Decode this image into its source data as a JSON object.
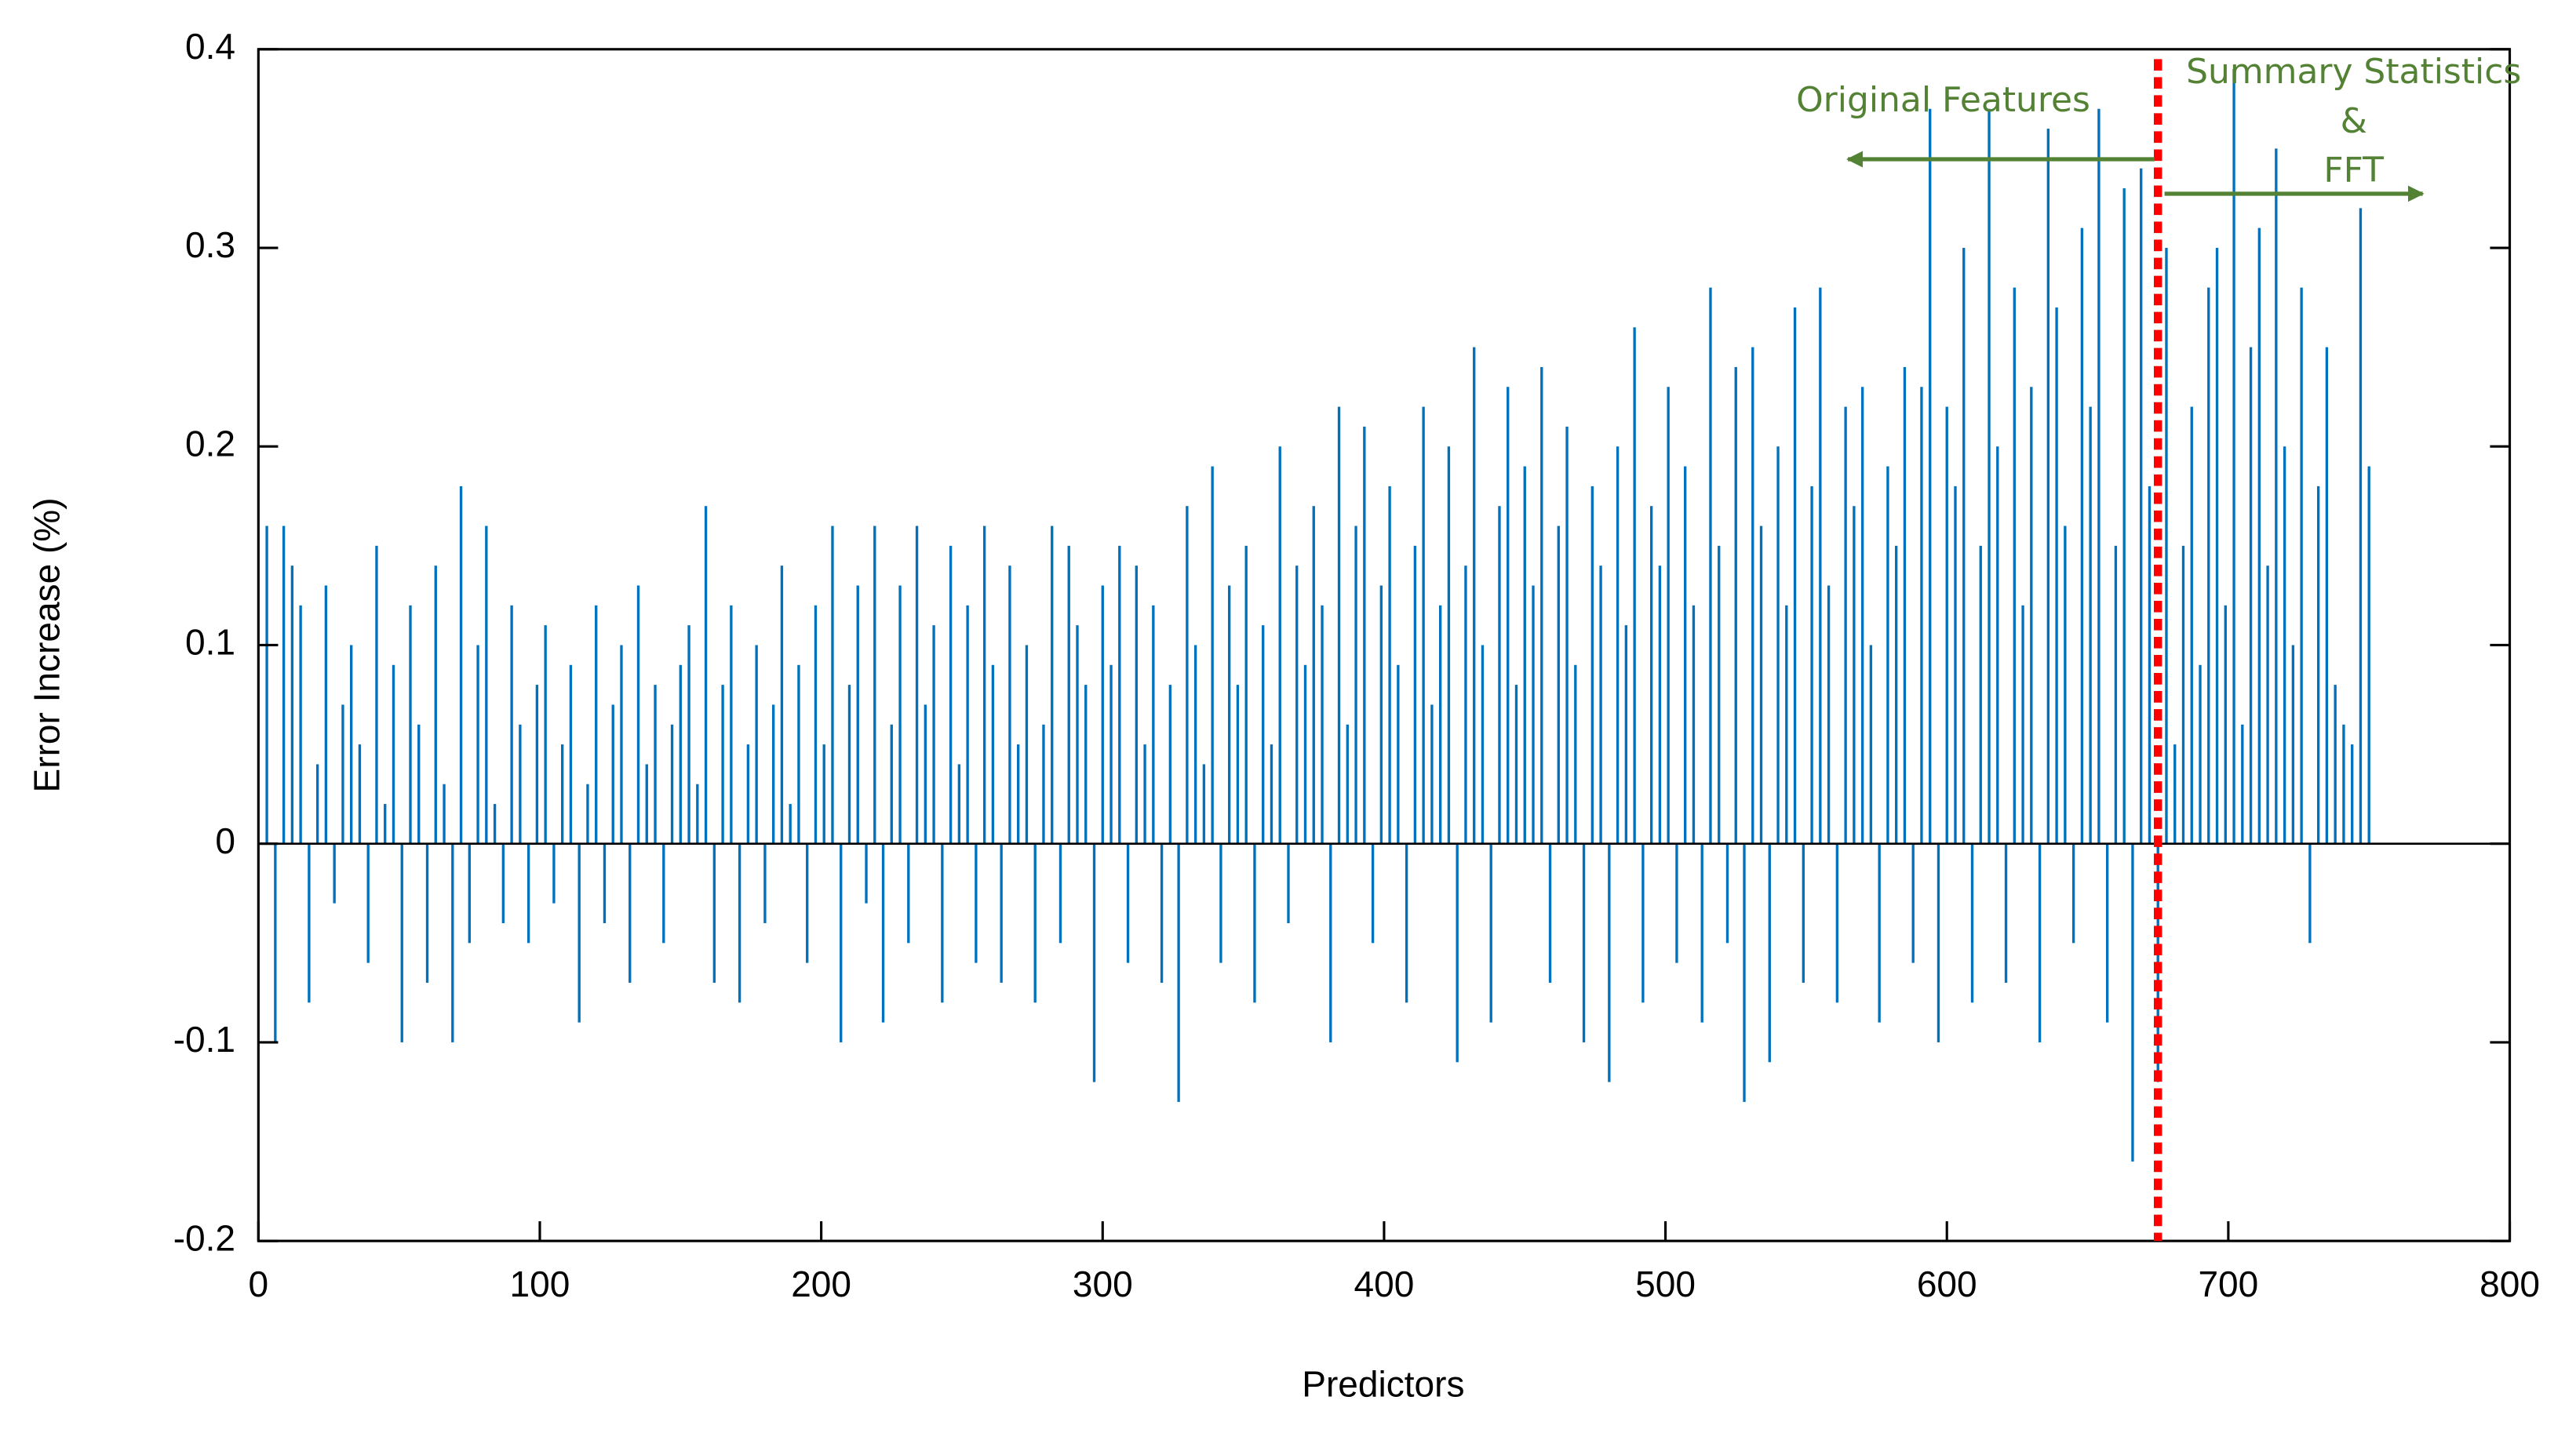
{
  "chart_data": {
    "type": "bar",
    "xlabel": "Predictors",
    "ylabel": "Error Increase (%)",
    "color": "#0072bd",
    "xlim": [
      0,
      800
    ],
    "xticks": [
      0,
      100,
      200,
      300,
      400,
      500,
      600,
      700,
      800
    ],
    "ylim": [
      -0.2,
      0.4
    ],
    "yticks": [
      -0.2,
      -0.1,
      0,
      0.1,
      0.2,
      0.3,
      0.4
    ],
    "divider_x": 675,
    "annotations": [
      "Original Features",
      "Summary Statistics",
      "&",
      "FFT"
    ],
    "x": [
      3,
      6,
      9,
      12,
      15,
      18,
      21,
      24,
      27,
      30,
      33,
      36,
      39,
      42,
      45,
      48,
      51,
      54,
      57,
      60,
      63,
      66,
      69,
      72,
      75,
      78,
      81,
      84,
      87,
      90,
      93,
      96,
      99,
      102,
      105,
      108,
      111,
      114,
      117,
      120,
      123,
      126,
      129,
      132,
      135,
      138,
      141,
      144,
      147,
      150,
      153,
      156,
      159,
      162,
      165,
      168,
      171,
      174,
      177,
      180,
      183,
      186,
      189,
      192,
      195,
      198,
      201,
      204,
      207,
      210,
      213,
      216,
      219,
      222,
      225,
      228,
      231,
      234,
      237,
      240,
      243,
      246,
      249,
      252,
      255,
      258,
      261,
      264,
      267,
      270,
      273,
      276,
      279,
      282,
      285,
      288,
      291,
      294,
      297,
      300,
      303,
      306,
      309,
      312,
      315,
      318,
      321,
      324,
      327,
      330,
      333,
      336,
      339,
      342,
      345,
      348,
      351,
      354,
      357,
      360,
      363,
      366,
      369,
      372,
      375,
      378,
      381,
      384,
      387,
      390,
      393,
      396,
      399,
      402,
      405,
      408,
      411,
      414,
      417,
      420,
      423,
      426,
      429,
      432,
      435,
      438,
      441,
      444,
      447,
      450,
      453,
      456,
      459,
      462,
      465,
      468,
      471,
      474,
      477,
      480,
      483,
      486,
      489,
      492,
      495,
      498,
      501,
      504,
      507,
      510,
      513,
      516,
      519,
      522,
      525,
      528,
      531,
      534,
      537,
      540,
      543,
      546,
      549,
      552,
      555,
      558,
      561,
      564,
      567,
      570,
      573,
      576,
      579,
      582,
      585,
      588,
      591,
      594,
      597,
      600,
      603,
      606,
      609,
      612,
      615,
      618,
      621,
      624,
      627,
      630,
      633,
      636,
      639,
      642,
      645,
      648,
      651,
      654,
      657,
      660,
      663,
      666,
      669,
      672,
      675,
      678,
      681,
      684,
      687,
      690,
      693,
      696,
      699,
      702,
      705,
      708,
      711,
      714,
      717,
      720,
      723,
      726,
      729,
      732,
      735,
      738,
      741,
      744,
      747,
      750
    ],
    "values": [
      0.16,
      -0.1,
      0.16,
      0.14,
      0.12,
      -0.08,
      0.04,
      0.13,
      -0.03,
      0.07,
      0.1,
      0.05,
      -0.06,
      0.15,
      0.02,
      0.09,
      -0.1,
      0.12,
      0.06,
      -0.07,
      0.14,
      0.03,
      -0.1,
      0.18,
      -0.05,
      0.1,
      0.16,
      0.02,
      -0.04,
      0.12,
      0.06,
      -0.05,
      0.08,
      0.11,
      -0.03,
      0.05,
      0.09,
      -0.09,
      0.03,
      0.12,
      -0.04,
      0.07,
      0.1,
      -0.07,
      0.13,
      0.04,
      0.08,
      -0.05,
      0.06,
      0.09,
      0.11,
      0.03,
      0.17,
      -0.07,
      0.08,
      0.12,
      -0.08,
      0.05,
      0.1,
      -0.04,
      0.07,
      0.14,
      0.02,
      0.09,
      -0.06,
      0.12,
      0.05,
      0.16,
      -0.1,
      0.08,
      0.13,
      -0.03,
      0.16,
      -0.09,
      0.06,
      0.13,
      -0.05,
      0.16,
      0.07,
      0.11,
      -0.08,
      0.15,
      0.04,
      0.12,
      -0.06,
      0.16,
      0.09,
      -0.07,
      0.14,
      0.05,
      0.1,
      -0.08,
      0.06,
      0.16,
      -0.05,
      0.15,
      0.11,
      0.08,
      -0.12,
      0.13,
      0.09,
      0.15,
      -0.06,
      0.14,
      0.05,
      0.12,
      -0.07,
      0.08,
      -0.13,
      0.17,
      0.1,
      0.04,
      0.19,
      -0.06,
      0.13,
      0.08,
      0.15,
      -0.08,
      0.11,
      0.05,
      0.2,
      -0.04,
      0.14,
      0.09,
      0.17,
      0.12,
      -0.1,
      0.22,
      0.06,
      0.16,
      0.21,
      -0.05,
      0.13,
      0.18,
      0.09,
      -0.08,
      0.15,
      0.22,
      0.07,
      0.12,
      0.2,
      -0.11,
      0.14,
      0.25,
      0.1,
      -0.09,
      0.17,
      0.23,
      0.08,
      0.19,
      0.13,
      0.24,
      -0.07,
      0.16,
      0.21,
      0.09,
      -0.1,
      0.18,
      0.14,
      -0.12,
      0.2,
      0.11,
      0.26,
      -0.08,
      0.17,
      0.14,
      0.23,
      -0.06,
      0.19,
      0.12,
      -0.09,
      0.28,
      0.15,
      -0.05,
      0.24,
      -0.13,
      0.25,
      0.16,
      -0.11,
      0.2,
      0.12,
      0.27,
      -0.07,
      0.18,
      0.28,
      0.13,
      -0.08,
      0.22,
      0.17,
      0.23,
      0.1,
      -0.09,
      0.19,
      0.15,
      0.24,
      -0.06,
      0.23,
      0.37,
      -0.1,
      0.22,
      0.18,
      0.3,
      -0.08,
      0.15,
      0.37,
      0.2,
      -0.07,
      0.28,
      0.12,
      0.23,
      -0.1,
      0.36,
      0.27,
      0.16,
      -0.05,
      0.31,
      0.22,
      0.37,
      -0.09,
      0.15,
      0.33,
      -0.16,
      0.34,
      0.18,
      -0.12,
      0.3,
      0.05,
      0.15,
      0.22,
      0.09,
      0.28,
      0.3,
      0.12,
      0.39,
      0.06,
      0.25,
      0.31,
      0.14,
      0.35,
      0.2,
      0.1,
      0.28,
      -0.05,
      0.18,
      0.25,
      0.08,
      0.06,
      0.05,
      0.32,
      0.19
    ]
  }
}
